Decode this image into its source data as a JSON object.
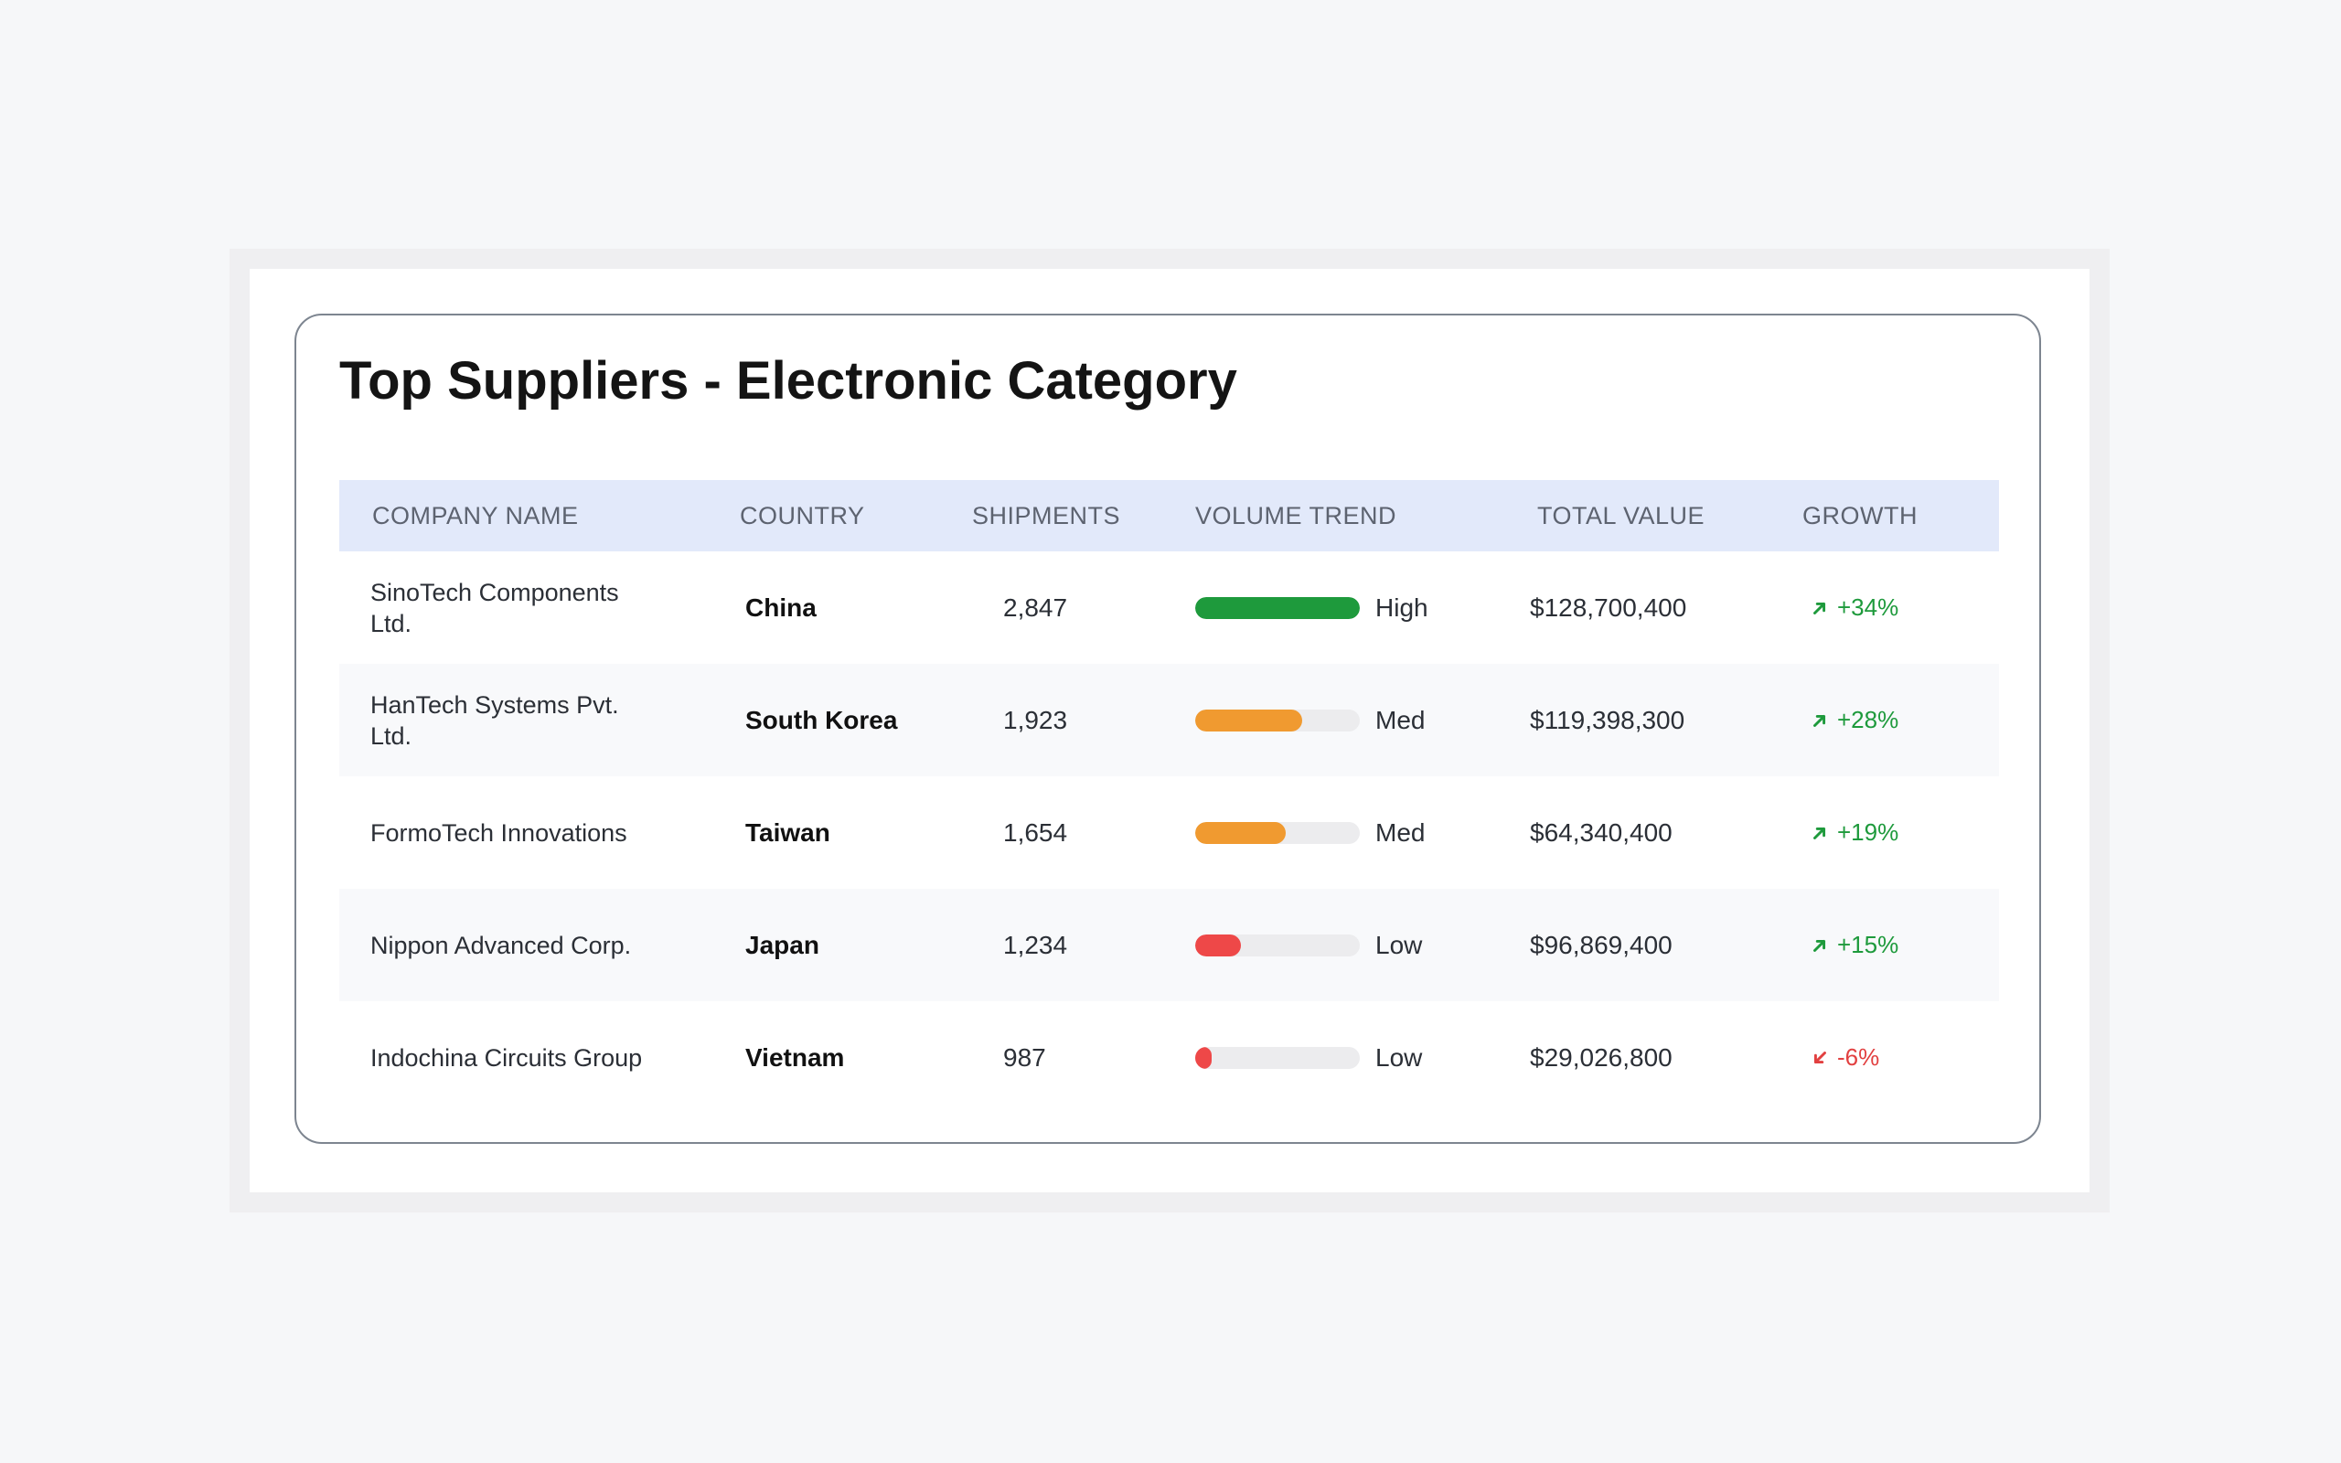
{
  "title": "Top Suppliers - Electronic Category",
  "columns": {
    "company": "COMPANY NAME",
    "country": "COUNTRY",
    "shipments": "SHIPMENTS",
    "trend": "VOLUME TREND",
    "value": "TOTAL VALUE",
    "growth": "GROWTH"
  },
  "colors": {
    "high": "#1e9a3c",
    "med": "#f09a30",
    "low": "#ee4848",
    "growth_up": "#1e9a3c",
    "growth_down": "#e24040",
    "header_bg": "#e2e9fa"
  },
  "rows": [
    {
      "company": "SinoTech Components Ltd.",
      "country": "China",
      "shipments": "2,847",
      "trend_level": 1.0,
      "trend_label": "High",
      "trend_color": "#1e9a3c",
      "value": "$128,700,400",
      "growth": "+34%",
      "growth_dir": "up",
      "growth_icon": "arrow-up-right-icon"
    },
    {
      "company": "HanTech Systems Pvt. Ltd.",
      "country": "South Korea",
      "shipments": "1,923",
      "trend_level": 0.65,
      "trend_label": "Med",
      "trend_color": "#f09a30",
      "value": "$119,398,300",
      "growth": "+28%",
      "growth_dir": "up",
      "growth_icon": "arrow-up-right-icon"
    },
    {
      "company": "FormoTech Innovations",
      "country": "Taiwan",
      "shipments": "1,654",
      "trend_level": 0.55,
      "trend_label": "Med",
      "trend_color": "#f09a30",
      "value": "$64,340,400",
      "growth": "+19%",
      "growth_dir": "up",
      "growth_icon": "arrow-up-right-icon"
    },
    {
      "company": "Nippon Advanced Corp.",
      "country": "Japan",
      "shipments": "1,234",
      "trend_level": 0.28,
      "trend_label": "Low",
      "trend_color": "#ee4848",
      "value": "$96,869,400",
      "growth": "+15%",
      "growth_dir": "up",
      "growth_icon": "arrow-up-right-icon"
    },
    {
      "company": "Indochina Circuits Group",
      "country": "Vietnam",
      "shipments": "987",
      "trend_level": 0.1,
      "trend_label": "Low",
      "trend_color": "#ee4848",
      "value": "$29,026,800",
      "growth": "-6%",
      "growth_dir": "down",
      "growth_icon": "arrow-down-left-icon"
    }
  ]
}
